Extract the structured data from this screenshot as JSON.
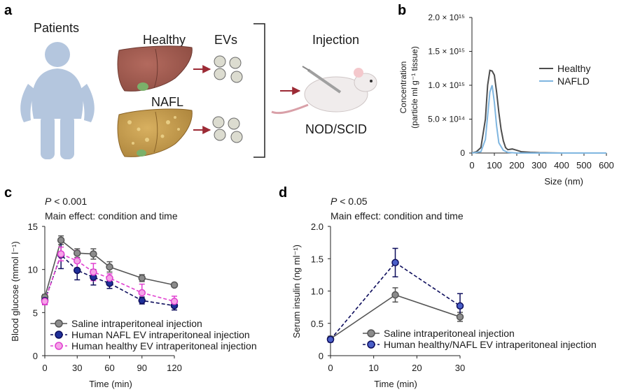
{
  "panel_a": {
    "letter": "a",
    "patients": "Patients",
    "healthy": "Healthy",
    "nafl": "NAFL",
    "evs": "EVs",
    "injection": "Injection",
    "mouse_strain": "NOD/SCID"
  },
  "chart_data": [
    {
      "panel": "b",
      "type": "line",
      "ylabel_line1": "Concentration",
      "ylabel_line2": "(particle ml g⁻¹ tissue)",
      "xlabel": "Size (nm)",
      "xlim": [
        0,
        600
      ],
      "ylim": [
        0,
        2000000000000000.0
      ],
      "xticks": [
        "0",
        "100",
        "200",
        "300",
        "400",
        "500",
        "600"
      ],
      "yticks": [
        "0",
        "5.0 × 10¹⁴",
        "1.0 × 10¹⁵",
        "1.5 × 10¹⁵",
        "2.0 × 10¹⁵"
      ],
      "legend_position": "right",
      "series": [
        {
          "name": "Healthy",
          "color": "#4d4d4d",
          "x": [
            0,
            20,
            40,
            60,
            70,
            80,
            90,
            100,
            110,
            120,
            130,
            140,
            150,
            160,
            180,
            200,
            220,
            260,
            300,
            400,
            600
          ],
          "y": [
            0,
            20000000000000.0,
            80000000000000.0,
            500000000000000.0,
            1000000000000000.0,
            1220000000000000.0,
            1210000000000000.0,
            1150000000000000.0,
            900000000000000.0,
            600000000000000.0,
            350000000000000.0,
            180000000000000.0,
            80000000000000.0,
            50000000000000.0,
            60000000000000.0,
            40000000000000.0,
            20000000000000.0,
            10000000000000.0,
            5000000000000.0,
            0,
            0
          ]
        },
        {
          "name": "NAFLD",
          "color": "#7fb6e0",
          "x": [
            0,
            40,
            60,
            70,
            80,
            90,
            100,
            110,
            120,
            140,
            160,
            200,
            600
          ],
          "y": [
            0,
            20000000000000.0,
            200000000000000.0,
            550000000000000.0,
            900000000000000.0,
            1000000000000000.0,
            750000000000000.0,
            400000000000000.0,
            150000000000000.0,
            40000000000000.0,
            10000000000000.0,
            0,
            0
          ]
        }
      ]
    },
    {
      "panel": "c",
      "type": "line",
      "stat_p": "P",
      "stat_rest": " < 0.001",
      "stat_effect": "Main effect: condition and time",
      "ylabel": "Blood glucose (mmol l⁻¹)",
      "xlabel": "Time (min)",
      "xlim": [
        0,
        120
      ],
      "ylim": [
        0,
        15
      ],
      "xticks": [
        0,
        30,
        60,
        90,
        120
      ],
      "yticks": [
        0,
        5,
        10,
        15
      ],
      "legend_position": "bottom-left",
      "series": [
        {
          "name": "Saline intraperitoneal injection",
          "fill": "#8c8c8c",
          "stroke": "#555555",
          "dashed": false,
          "x": [
            0,
            15,
            30,
            45,
            60,
            90,
            120
          ],
          "y": [
            6.8,
            13.4,
            11.9,
            11.8,
            10.3,
            9.0,
            8.2
          ],
          "err": [
            0.3,
            0.5,
            0.5,
            0.6,
            0.6,
            0.4,
            0.2
          ]
        },
        {
          "name": "Human NAFL EV intraperitoneal injection",
          "fill": "#1f2f99",
          "stroke": "#0d0d5c",
          "dashed": true,
          "x": [
            0,
            15,
            30,
            45,
            60,
            90,
            120
          ],
          "y": [
            6.4,
            11.7,
            9.9,
            9.1,
            8.4,
            6.4,
            5.8
          ],
          "err": [
            0.4,
            1.6,
            1.1,
            0.9,
            0.6,
            0.4,
            0.5
          ]
        },
        {
          "name": "Human healthy EV intraperitoneal injection",
          "fill": "#f5a3e8",
          "stroke": "#e040d0",
          "dashed": true,
          "x": [
            0,
            15,
            30,
            45,
            60,
            90,
            120
          ],
          "y": [
            6.3,
            11.8,
            11.0,
            9.7,
            9.0,
            7.3,
            6.3
          ],
          "err": [
            0.4,
            0.8,
            1.2,
            1.0,
            0.5,
            1.0,
            0.6
          ]
        }
      ]
    },
    {
      "panel": "d",
      "type": "line",
      "stat_p": "P",
      "stat_rest": " < 0.05",
      "stat_effect": "Main effect: condition and time",
      "ylabel": "Serum insulin (ng ml⁻¹)",
      "xlabel": "Time (min)",
      "xlim": [
        0,
        30
      ],
      "ylim": [
        0,
        2.0
      ],
      "xticks": [
        0,
        10,
        20,
        30
      ],
      "yticks": [
        "0",
        "0.5",
        "1.0",
        "1.5",
        "2.0"
      ],
      "legend_position": "bottom-right",
      "series": [
        {
          "name": "Saline intraperitoneal injection",
          "fill": "#8c8c8c",
          "stroke": "#555555",
          "dashed": false,
          "x": [
            0,
            15,
            30
          ],
          "y": [
            0.26,
            0.94,
            0.6
          ],
          "err": [
            0.04,
            0.11,
            0.07
          ]
        },
        {
          "name": "Human healthy/NAFL EV intraperitoneal injection",
          "fill": "#4a5fc8",
          "stroke": "#0d0d5c",
          "dashed": true,
          "x": [
            0,
            15,
            30
          ],
          "y": [
            0.25,
            1.44,
            0.77
          ],
          "err": [
            0.04,
            0.22,
            0.19
          ]
        }
      ]
    }
  ]
}
